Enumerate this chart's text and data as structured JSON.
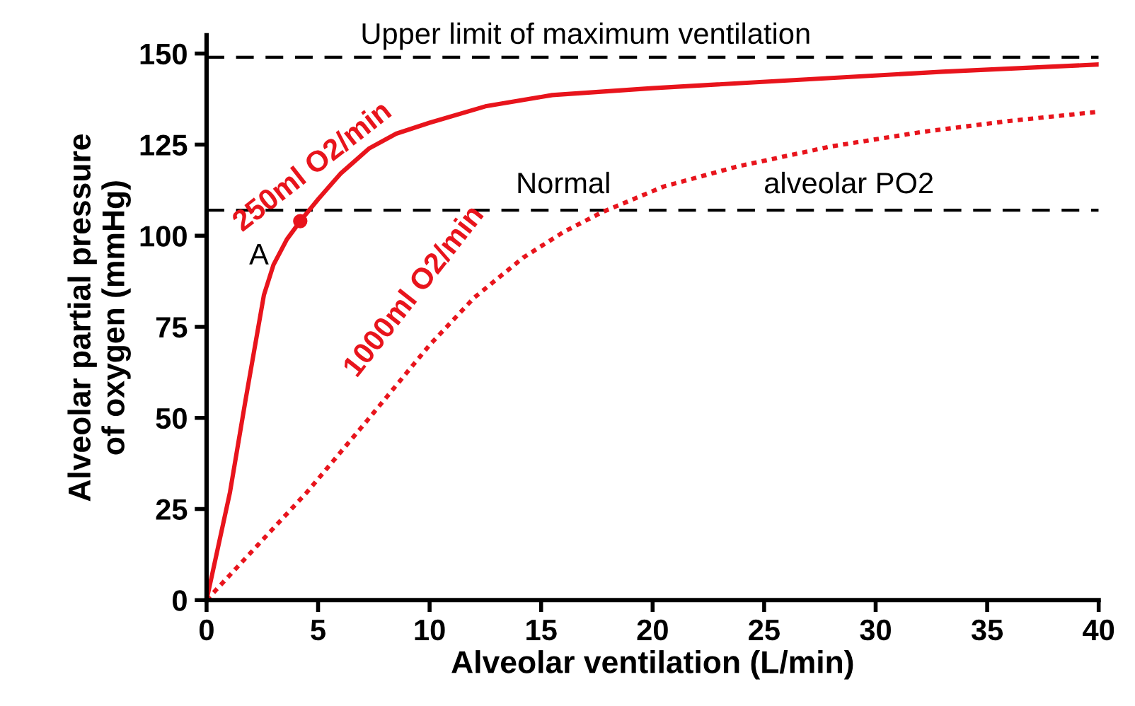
{
  "chart_data": {
    "type": "line",
    "xlabel": "Alveolar ventilation (L/min)",
    "ylabel": "Alveolar partial pressure\nof oxygen (mmHg)",
    "xlim": [
      0,
      40
    ],
    "ylim": [
      0,
      155
    ],
    "xticks": [
      0,
      5,
      10,
      15,
      20,
      25,
      30,
      35,
      40
    ],
    "yticks": [
      0,
      25,
      50,
      75,
      100,
      125,
      150
    ],
    "grid": false,
    "legend": false,
    "series": [
      {
        "name": "250ml O2/min",
        "color": "#e8141c",
        "line_style": "solid",
        "x": [
          0,
          1.05,
          1.75,
          2.57,
          3,
          3.6,
          4.2,
          5,
          6,
          7.3,
          8.5,
          10,
          12.5,
          15.5,
          20,
          26.6,
          33,
          40
        ],
        "values": [
          0,
          29.6,
          55,
          83.7,
          92,
          99,
          104,
          110,
          117,
          124,
          128,
          131,
          135.5,
          138.6,
          140.5,
          142.8,
          145,
          147
        ]
      },
      {
        "name": "1000ml O2/min",
        "color": "#e8141c",
        "line_style": "dotted",
        "x": [
          0,
          4.5,
          7.3,
          10,
          12,
          14.2,
          16,
          17.75,
          20.5,
          23.8,
          28,
          32.1,
          36,
          40
        ],
        "values": [
          0,
          29.6,
          50,
          70,
          83,
          94,
          101,
          106.5,
          113.5,
          119,
          124.5,
          128.5,
          131.5,
          134
        ]
      },
      {
        "type": "scatter",
        "color": "#e8141c",
        "marker": "circle",
        "x": [
          4.2
        ],
        "values": [
          104
        ]
      }
    ],
    "ref_lines": [
      {
        "axis": "y",
        "value": 149,
        "label": "Upper limit of maximum ventilation",
        "color": "#000000",
        "line_style": "dashed"
      },
      {
        "axis": "y",
        "value": 107,
        "color": "#000000",
        "line_style": "dashed"
      }
    ],
    "annotations": [
      {
        "text": "A",
        "x": 4.2,
        "y": 104
      },
      "Normal",
      "alveolar PO2"
    ]
  }
}
